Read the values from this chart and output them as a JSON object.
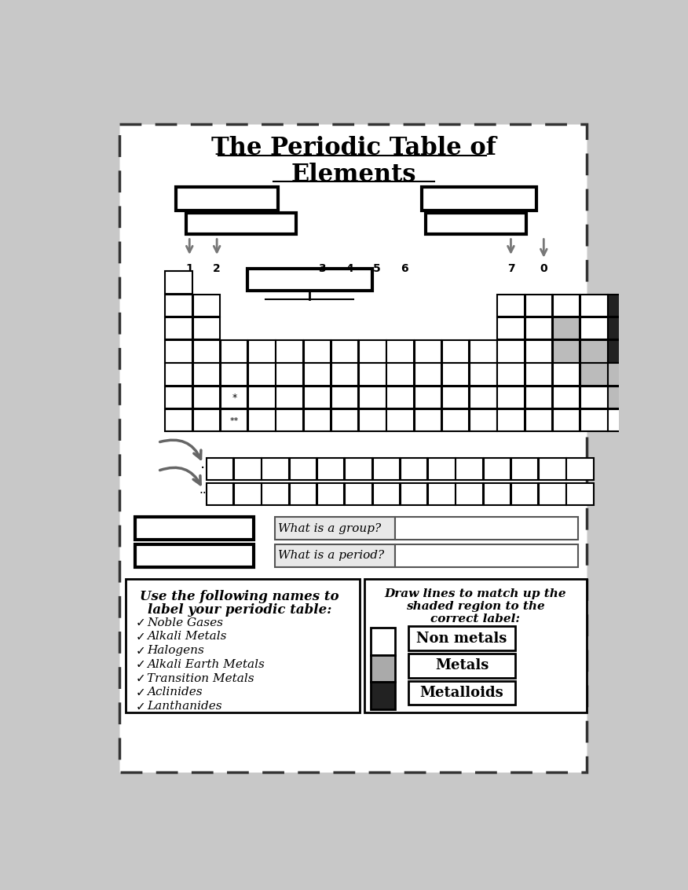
{
  "title_line1": "The Periodic Table of",
  "title_line2": "Elements",
  "bg_color": "#c8c8c8",
  "white": "#ffffff",
  "black": "#111111",
  "gray_light": "#bbbbbb",
  "dark_nonmetal": "#222222",
  "group_numbers": [
    "1",
    "2",
    "3",
    "4",
    "5",
    "6",
    "7",
    "0"
  ],
  "left_section_title1": "Use the following names to",
  "left_section_title2": "label your periodic table:",
  "checklist": [
    "Noble Gases",
    "Alkali Metals",
    "Halogens",
    "Alkali Earth Metals",
    "Transition Metals",
    "Aclinides",
    "Lanthanides"
  ],
  "right_section_title1": "Draw lines to match up the",
  "right_section_title2": "shaded region to the",
  "right_section_title3": "correct label:",
  "match_labels": [
    "Non metals",
    "Metals",
    "Metalloids"
  ],
  "qa_labels": [
    "What is a group?",
    "What is a period?"
  ]
}
